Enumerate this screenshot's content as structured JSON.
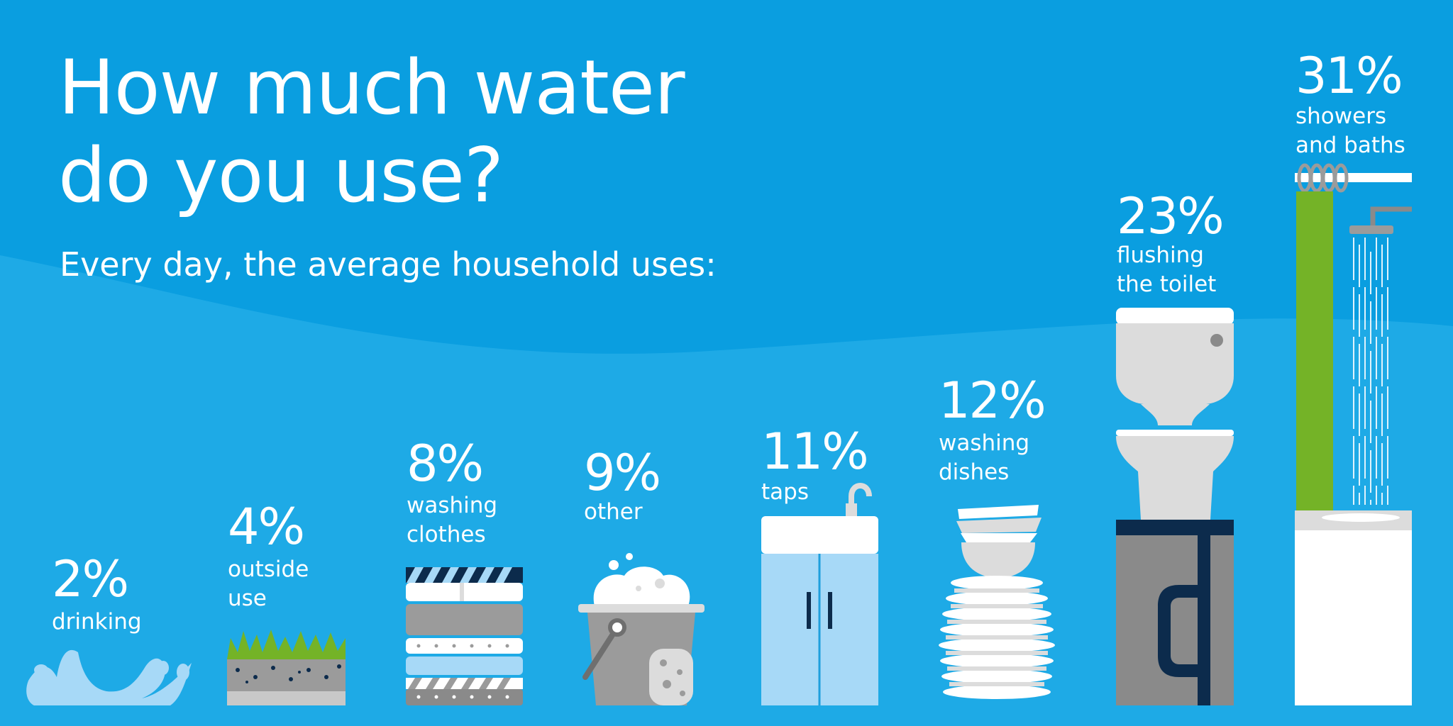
{
  "header": {
    "title_line1": "How much water",
    "title_line2": "do you use?",
    "subtitle": "Every day, the average household uses:"
  },
  "colors": {
    "background": "#0a9ee0",
    "lower_band": "#1eaae6",
    "white": "#ffffff",
    "light_grey": "#dcdcdc",
    "mid_grey": "#9b9b9b",
    "dark_grey": "#8a8a8a",
    "navy": "#0c2b4c",
    "pale_blue": "#a7d9f7",
    "water_blue": "#9fd4f4",
    "green": "#74b327"
  },
  "chart_data": {
    "type": "bar",
    "title": "How much water do you use?",
    "subtitle": "Every day, the average household uses:",
    "unit": "%",
    "categories": [
      "drinking",
      "outside use",
      "washing clothes",
      "other",
      "taps",
      "washing dishes",
      "flushing the toilet",
      "showers and baths"
    ],
    "values": [
      2,
      4,
      8,
      9,
      11,
      12,
      23,
      31
    ],
    "value_labels": [
      "2%",
      "4%",
      "8%",
      "9%",
      "11%",
      "12%",
      "23%",
      "31%"
    ],
    "category_labels": [
      "drinking",
      "outside\nuse",
      "washing\nclothes",
      "other",
      "taps",
      "washing\ndishes",
      "flushing\nthe toilet",
      "showers\nand baths"
    ],
    "icons": [
      "water-splash-icon",
      "grass-soil-icon",
      "folded-clothes-icon",
      "bucket-sponge-icon",
      "sink-cabinet-icon",
      "dish-stack-icon",
      "toilet-icon",
      "shower-icon"
    ]
  }
}
